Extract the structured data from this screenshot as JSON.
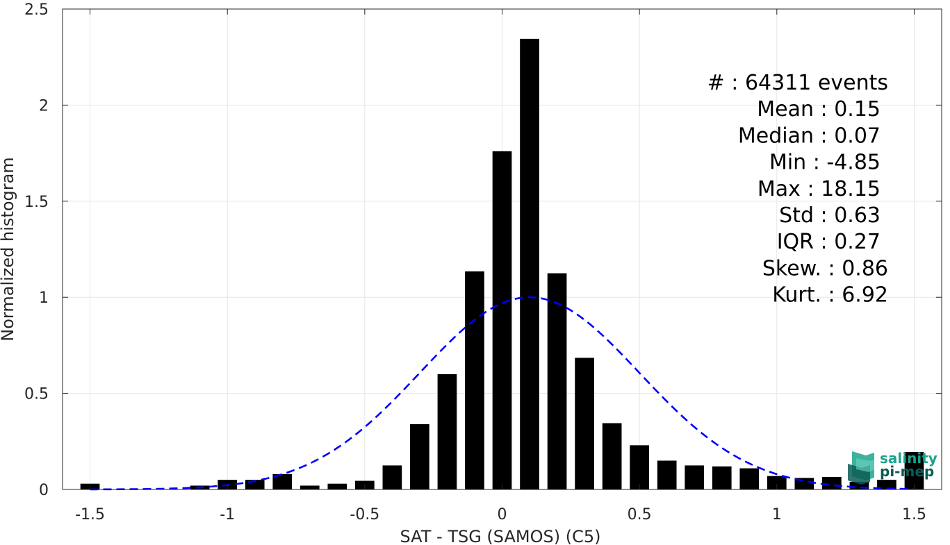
{
  "chart_data": {
    "type": "bar",
    "xlabel": "SAT - TSG (SAMOS) (C5)",
    "ylabel": "Normalized histogram",
    "xlim": [
      -1.6,
      1.6
    ],
    "ylim": [
      0,
      2.5
    ],
    "grid": true,
    "x_ticks": [
      -1.5,
      -1,
      -0.5,
      0,
      0.5,
      1,
      1.5
    ],
    "x_tick_labels": [
      "-1.5",
      "-1",
      "-0.5",
      "0",
      "0.5",
      "1",
      "1.5"
    ],
    "y_ticks": [
      0,
      0.5,
      1,
      1.5,
      2,
      2.5
    ],
    "y_tick_labels": [
      "0",
      "0.5",
      "1",
      "1.5",
      "2",
      "2.5"
    ],
    "bin_width": 0.1,
    "bar_width": 0.07,
    "bars": {
      "x": [
        -1.5,
        -1.4,
        -1.3,
        -1.2,
        -1.1,
        -1.0,
        -0.9,
        -0.8,
        -0.7,
        -0.6,
        -0.5,
        -0.4,
        -0.3,
        -0.2,
        -0.1,
        0.0,
        0.1,
        0.2,
        0.3,
        0.4,
        0.5,
        0.6,
        0.7,
        0.8,
        0.9,
        1.0,
        1.1,
        1.2,
        1.3,
        1.4,
        1.5
      ],
      "y": [
        0.03,
        0.0,
        0.0,
        0.0,
        0.02,
        0.05,
        0.05,
        0.08,
        0.02,
        0.03,
        0.045,
        0.125,
        0.34,
        0.6,
        1.135,
        1.76,
        2.345,
        1.125,
        0.685,
        0.345,
        0.23,
        0.15,
        0.125,
        0.12,
        0.11,
        0.07,
        0.06,
        0.065,
        0.04,
        0.05,
        0.195
      ],
      "color": "#000000"
    },
    "fit_curve": {
      "type": "normal",
      "mean": 0.1,
      "std": 0.4,
      "peak": 1.0,
      "color": "#0000ff",
      "style": "dashed"
    },
    "stats_box": {
      "lines": [
        "#  : 64311 events",
        "Mean : 0.15",
        "Median : 0.07",
        "Min : -4.85",
        "Max : 18.15",
        "Std : 0.63",
        "IQR : 0.27",
        "Skew. : 0.86",
        "Kurt. : 6.92"
      ]
    }
  },
  "logo": {
    "line1": "salinity",
    "line2": "pi-mep",
    "color_primary": "#1aa58e",
    "color_secondary": "#0b5c55"
  }
}
